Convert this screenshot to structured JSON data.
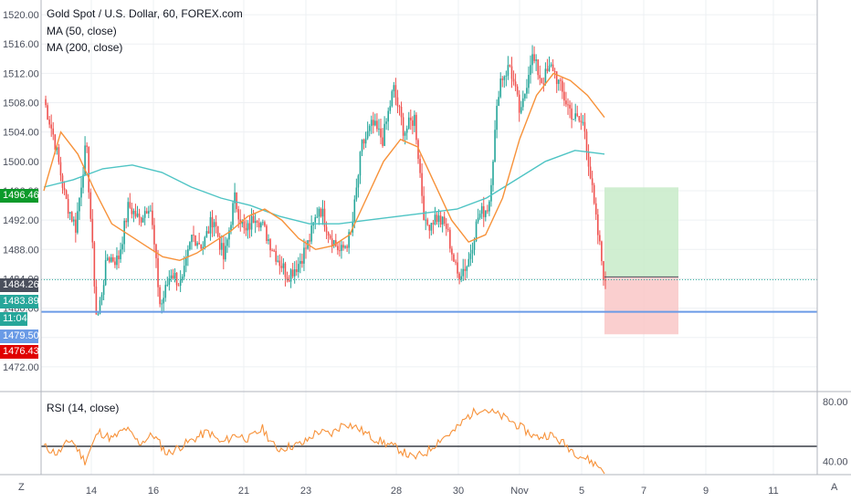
{
  "legend": {
    "title": "Gold Spot / U.S. Dollar, 60, FOREX.com",
    "ma50": "MA (50, close)",
    "ma200": "MA (200, close)",
    "rsi": "RSI (14, close)"
  },
  "badges": {
    "tp": "1496.46",
    "entry": "1484.26",
    "last": "1483.89",
    "timer": "11:04",
    "support": "1479.50",
    "sl": "1476.43"
  },
  "corner": {
    "left": "Z",
    "right": "A"
  },
  "colors": {
    "up": "#26a69a",
    "down": "#ef5350",
    "ma50": "#f7923a",
    "ma200": "#4ec4c4",
    "rsi": "#f7923a",
    "support": "#6a9be6",
    "tp_zone": "#c8ebc9",
    "sl_zone": "#f9c7c7",
    "badge_tp": "#0c9a2a",
    "badge_sl": "#e00000",
    "badge_last": "#26a69a",
    "badge_entry": "#4a4f5c",
    "badge_support": "#6a9be6"
  },
  "chart_data": [
    {
      "type": "candlestick",
      "title": "Gold Spot / U.S. Dollar, 60, FOREX.com",
      "ylim": [
        1469,
        1522
      ],
      "yticks": [
        1472.0,
        1476.0,
        1480.0,
        1484.0,
        1488.0,
        1492.0,
        1496.0,
        1500.0,
        1504.0,
        1508.0,
        1512.0,
        1516.0,
        1520.0
      ],
      "x_tick_labels": [
        "14",
        "16",
        "21",
        "23",
        "28",
        "30",
        "Nov",
        "5",
        "7",
        "9",
        "11"
      ],
      "series": [
        {
          "name": "MA (50, close)",
          "kind": "line"
        },
        {
          "name": "MA (200, close)",
          "kind": "line"
        }
      ],
      "close_path": [
        1508.5,
        1503.0,
        1495.0,
        1491.0,
        1502.5,
        1478.0,
        1487.0,
        1486.5,
        1494.0,
        1492.0,
        1494.5,
        1480.0,
        1485.0,
        1483.0,
        1490.0,
        1488.5,
        1492.5,
        1486.5,
        1495.0,
        1490.0,
        1493.0,
        1490.0,
        1487.0,
        1484.5,
        1486.0,
        1489.0,
        1494.0,
        1490.0,
        1487.5,
        1490.0,
        1502.0,
        1505.0,
        1503.0,
        1510.0,
        1504.0,
        1506.0,
        1491.0,
        1492.5,
        1491.0,
        1484.5,
        1486.0,
        1492.5,
        1494.0,
        1511.0,
        1513.0,
        1506.0,
        1514.5,
        1511.0,
        1513.0,
        1509.0,
        1506.0,
        1505.0,
        1493.0,
        1483.0
      ],
      "ma50_path": [
        1496.0,
        1504.0,
        1501.0,
        1496.0,
        1491.5,
        1490.0,
        1488.5,
        1487.0,
        1486.5,
        1487.5,
        1489.0,
        1490.5,
        1492.5,
        1493.5,
        1492.0,
        1489.5,
        1488.0,
        1488.5,
        1490.0,
        1495.0,
        1500.0,
        1503.0,
        1502.0,
        1497.0,
        1492.0,
        1489.0,
        1490.0,
        1495.0,
        1503.0,
        1509.0,
        1512.0,
        1511.0,
        1509.0,
        1506.0
      ],
      "ma200_path": [
        1496.5,
        1497.5,
        1499.0,
        1499.5,
        1498.5,
        1496.5,
        1495.0,
        1494.0,
        1492.5,
        1491.5,
        1491.5,
        1492.0,
        1492.5,
        1493.0,
        1493.5,
        1495.0,
        1497.5,
        1500.0,
        1501.5,
        1501.0
      ],
      "annotations": {
        "support_level": 1479.5,
        "entry": 1484.26,
        "last": 1483.89,
        "take_profit": 1496.46,
        "stop_loss": 1476.43
      }
    },
    {
      "type": "line",
      "title": "RSI (14, close)",
      "ylim": [
        31,
        85
      ],
      "yticks": [
        40.0,
        80.0
      ],
      "reference_level": 50,
      "series": [
        {
          "name": "RSI (14, close)"
        }
      ],
      "values": [
        50,
        45,
        55,
        40,
        60,
        55,
        62,
        52,
        58,
        45,
        50,
        55,
        60,
        52,
        58,
        55,
        62,
        48,
        50,
        52,
        60,
        58,
        66,
        62,
        56,
        52,
        48,
        42,
        46,
        55,
        60,
        70,
        76,
        72,
        68,
        62,
        56,
        58,
        52,
        45,
        40,
        34
      ]
    }
  ]
}
